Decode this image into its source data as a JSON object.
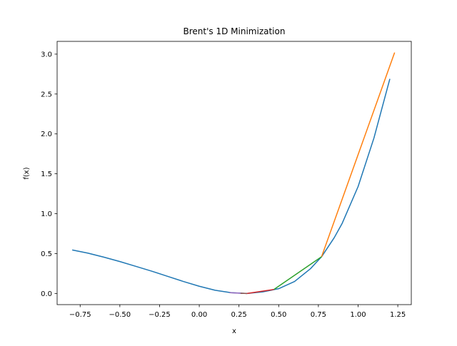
{
  "chart_data": {
    "type": "line",
    "title": "Brent's 1D Minimization",
    "xlabel": "x",
    "ylabel": "f(x)",
    "xlim": [
      -0.895,
      1.335
    ],
    "ylim": [
      -0.14,
      3.16
    ],
    "xticks": [
      -0.75,
      -0.5,
      -0.25,
      0.0,
      0.25,
      0.5,
      0.75,
      1.0,
      1.25
    ],
    "xtick_labels": [
      "−0.75",
      "−0.50",
      "−0.25",
      "0.00",
      "0.25",
      "0.50",
      "0.75",
      "1.00",
      "1.25"
    ],
    "yticks": [
      0.0,
      0.5,
      1.0,
      1.5,
      2.0,
      2.5,
      3.0
    ],
    "ytick_labels": [
      "0.0",
      "0.5",
      "1.0",
      "1.5",
      "2.0",
      "2.5",
      "3.0"
    ],
    "grid": false,
    "series": [
      {
        "color": "#1f77b4",
        "x": [
          -0.8,
          -0.7,
          -0.6,
          -0.5,
          -0.4,
          -0.3,
          -0.2,
          -0.1,
          0.0,
          0.1,
          0.2,
          0.3,
          0.4,
          0.5,
          0.6,
          0.7,
          0.77,
          0.85,
          0.9,
          1.0,
          1.1,
          1.2
        ],
        "y": [
          0.545,
          0.505,
          0.455,
          0.4,
          0.34,
          0.28,
          0.215,
          0.15,
          0.09,
          0.04,
          0.01,
          0.0,
          0.02,
          0.06,
          0.15,
          0.31,
          0.46,
          0.7,
          0.88,
          1.34,
          1.95,
          2.69
        ]
      },
      {
        "color": "#ff7f0e",
        "x": [
          0.77,
          1.23
        ],
        "y": [
          0.46,
          3.02
        ]
      },
      {
        "color": "#2ca02c",
        "x": [
          0.47,
          0.77
        ],
        "y": [
          0.05,
          0.46
        ]
      },
      {
        "color": "#d62728",
        "x": [
          0.3,
          0.47
        ],
        "y": [
          0.0,
          0.05
        ]
      },
      {
        "color": "#9467bd",
        "x": [
          0.19,
          0.3
        ],
        "y": [
          0.01,
          0.0
        ]
      },
      {
        "color": "#8c564b",
        "x": [
          0.26,
          0.3
        ],
        "y": [
          0.002,
          0.0
        ]
      }
    ]
  }
}
